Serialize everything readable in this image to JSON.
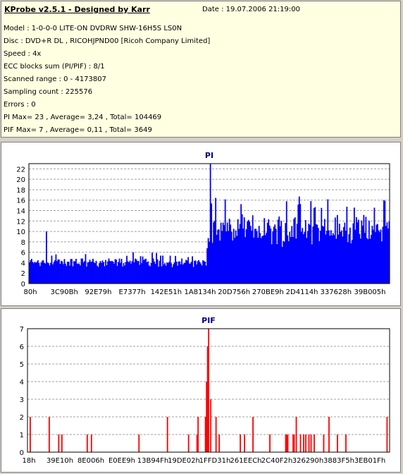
{
  "header": {
    "title": "KProbe v2.5.1 - Designed by Karr",
    "date": "Date : 19.07.2006 21:19:00",
    "lines": [
      "Model : 1-0-0-0 LITE-ON DVDRW SHW-16H5S  LS0N",
      "Disc : DVD+R DL , RICOHJPND00 [Ricoh Company Limited]",
      "Speed : 4x",
      "ECC blocks sum (PI/PIF) : 8/1",
      "Scanned range : 0 - 4173807",
      "Sampling count : 225576",
      "Errors : 0",
      "PI Max= 23 , Average= 3,24 , Total= 104469",
      "PIF Max= 7 , Average= 0,11 , Total= 3649"
    ]
  },
  "chart_data": [
    {
      "type": "bar",
      "title": "PI",
      "xlabel": "",
      "ylabel": "",
      "ylim": [
        0,
        23
      ],
      "y_ticks": [
        0,
        2,
        4,
        6,
        8,
        10,
        12,
        14,
        16,
        18,
        20,
        22
      ],
      "x_tick_labels": [
        "80h",
        "3C90Bh",
        "92E79h",
        "E7377h",
        "142E51h",
        "1A8134h",
        "20D756h",
        "270BE9h",
        "2D4114h",
        "337628h",
        "39B005h"
      ],
      "grid": true,
      "color": "#0000ff",
      "series": [
        {
          "segments": [
            {
              "from": 0.0,
              "to": 0.49,
              "min": 2,
              "typical": 4,
              "max": 6,
              "peak": 10,
              "peak_at": [
                0.047
              ]
            },
            {
              "from": 0.49,
              "to": 0.5,
              "min": 4,
              "typical": 7,
              "max": 12,
              "peak": 12,
              "peak_at": []
            },
            {
              "from": 0.5,
              "to": 1.0,
              "min": 5,
              "typical": 9,
              "max": 17,
              "peak": 23,
              "peak_at": [
                0.5
              ]
            }
          ]
        }
      ]
    },
    {
      "type": "bar",
      "title": "PIF",
      "xlabel": "",
      "ylabel": "",
      "ylim": [
        0,
        7
      ],
      "y_ticks": [
        0,
        1,
        2,
        3,
        4,
        5,
        6,
        7
      ],
      "x_tick_labels": [
        "18h",
        "39E10h",
        "8E006h",
        "E0EE9h",
        "13B94Fh",
        "19DE02h",
        "1FFD31h",
        "261EECh",
        "2C40F2h",
        "326290h",
        "3883F5h",
        "3EB01Fh"
      ],
      "grid": true,
      "color": "#ff0000",
      "series": [
        {
          "baseline": 0,
          "spikes": [
            {
              "at": 0.5,
              "value": 7
            },
            {
              "at": 0.497,
              "value": 6
            },
            {
              "at": 0.494,
              "value": 4
            },
            {
              "at": 0.503,
              "value": 3
            },
            {
              "at": 0.49,
              "value": 2
            },
            {
              "at": 0.47,
              "value": 2
            },
            {
              "at": 0.52,
              "value": 2
            },
            {
              "at": 0.007,
              "value": 2
            },
            {
              "at": 0.057,
              "value": 2
            },
            {
              "at": 0.385,
              "value": 2
            },
            {
              "at": 0.62,
              "value": 2
            },
            {
              "at": 0.74,
              "value": 2
            },
            {
              "at": 0.83,
              "value": 2
            },
            {
              "at": 0.99,
              "value": 2
            }
          ],
          "sparse_value": 1
        }
      ]
    }
  ]
}
